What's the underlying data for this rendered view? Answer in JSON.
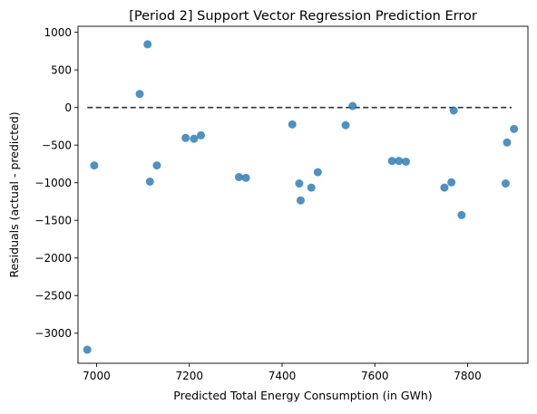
{
  "chart_data": {
    "type": "scatter",
    "title": "[Period 2] Support Vector Regression Prediction Error",
    "xlabel": "Predicted Total Energy Consumption (in GWh)",
    "ylabel": "Residuals (actual - predicted)",
    "xlim": [
      6960,
      7930
    ],
    "ylim": [
      -3400,
      1080
    ],
    "xticks": [
      7000,
      7200,
      7400,
      7600,
      7800
    ],
    "yticks": [
      1000,
      500,
      0,
      -500,
      -1000,
      -1500,
      -2000,
      -2500,
      -3000
    ],
    "xtick_labels": [
      "7000",
      "7200",
      "7400",
      "7600",
      "7800"
    ],
    "ytick_labels": [
      "1000",
      "500",
      "0",
      "−500",
      "−1000",
      "−1500",
      "−2000",
      "−2500",
      "−3000"
    ],
    "reference_line": {
      "y": 0,
      "x_start": 6980,
      "x_end": 7895,
      "style": "dashed",
      "color": "#333333"
    },
    "marker_color": "#1f77b4",
    "grid": false,
    "series": [
      {
        "points": [
          {
            "x": 6980,
            "y": -3220
          },
          {
            "x": 6995,
            "y": -770
          },
          {
            "x": 7093,
            "y": 180
          },
          {
            "x": 7110,
            "y": 840
          },
          {
            "x": 7115,
            "y": -985
          },
          {
            "x": 7130,
            "y": -770
          },
          {
            "x": 7192,
            "y": -405
          },
          {
            "x": 7210,
            "y": -415
          },
          {
            "x": 7225,
            "y": -370
          },
          {
            "x": 7307,
            "y": -925
          },
          {
            "x": 7322,
            "y": -935
          },
          {
            "x": 7422,
            "y": -225
          },
          {
            "x": 7437,
            "y": -1010
          },
          {
            "x": 7440,
            "y": -1235
          },
          {
            "x": 7463,
            "y": -1065
          },
          {
            "x": 7477,
            "y": -860
          },
          {
            "x": 7537,
            "y": -235
          },
          {
            "x": 7552,
            "y": 20
          },
          {
            "x": 7637,
            "y": -710
          },
          {
            "x": 7652,
            "y": -710
          },
          {
            "x": 7667,
            "y": -720
          },
          {
            "x": 7750,
            "y": -1065
          },
          {
            "x": 7765,
            "y": -995
          },
          {
            "x": 7770,
            "y": -40
          },
          {
            "x": 7787,
            "y": -1430
          },
          {
            "x": 7882,
            "y": -1010
          },
          {
            "x": 7885,
            "y": -465
          },
          {
            "x": 7900,
            "y": -285
          }
        ]
      }
    ]
  }
}
